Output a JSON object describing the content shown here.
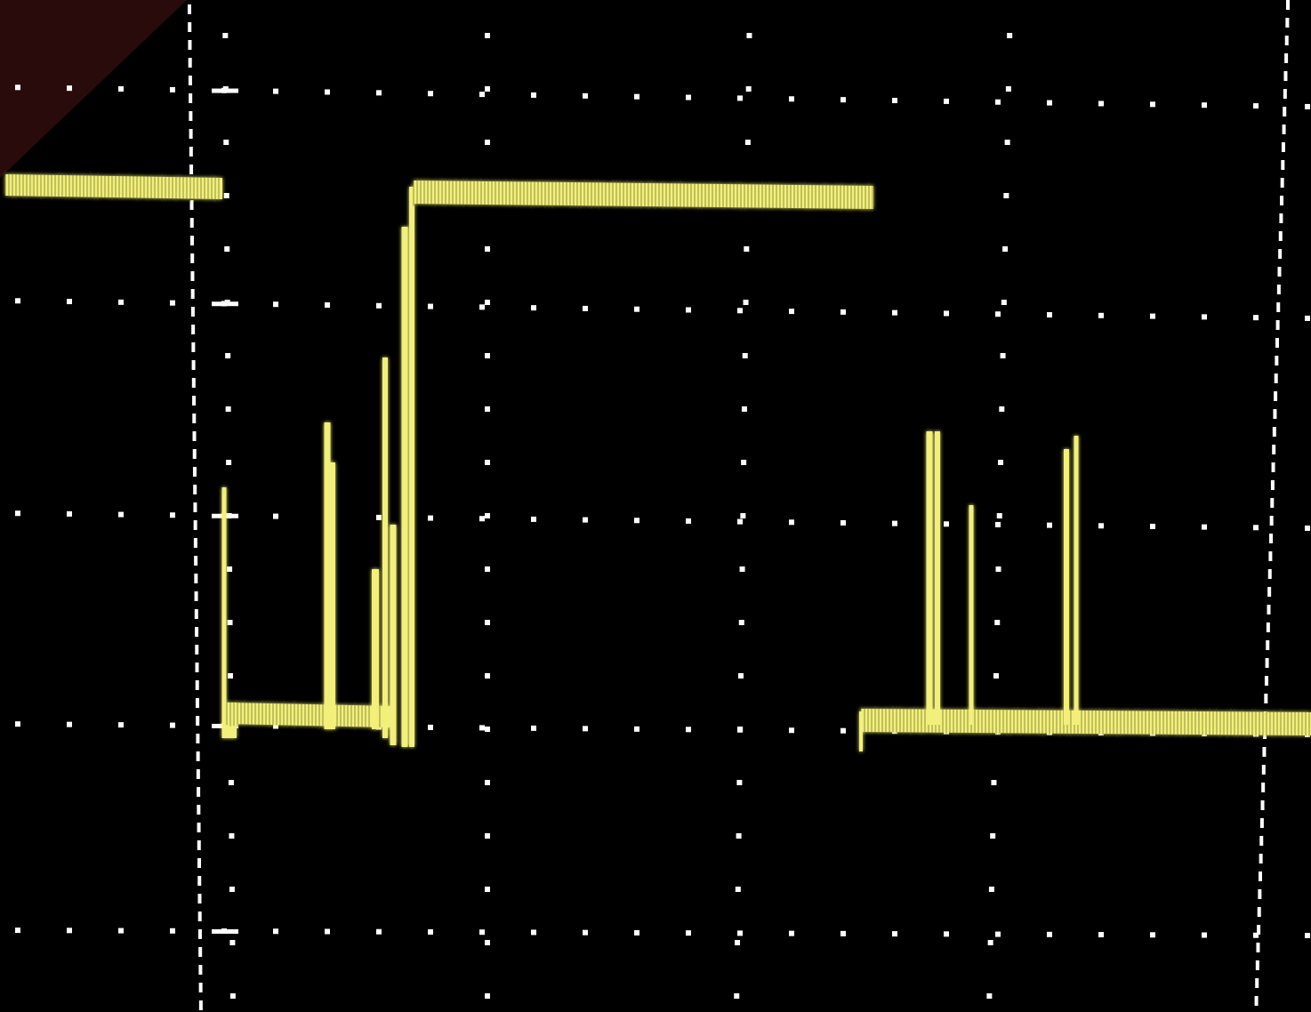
{
  "screen": {
    "background_color": "#000000",
    "bezel_color": "#2a0b0b",
    "graticule_color": "#ffffff",
    "trace_color": "#f2f07a",
    "trace_glow_color": "#fffbb8"
  },
  "graticule": {
    "major_divisions_x": 5,
    "major_divisions_y": 4,
    "minor_dots_per_division": 5
  },
  "trace": {
    "description_icon": "yellow-signal-trace",
    "segments": [
      "high-level-start",
      "falling-edge",
      "low-level-with-spikes",
      "rising-edge",
      "high-plateau",
      "signal-gap",
      "low-level-with-spikes-end"
    ]
  }
}
